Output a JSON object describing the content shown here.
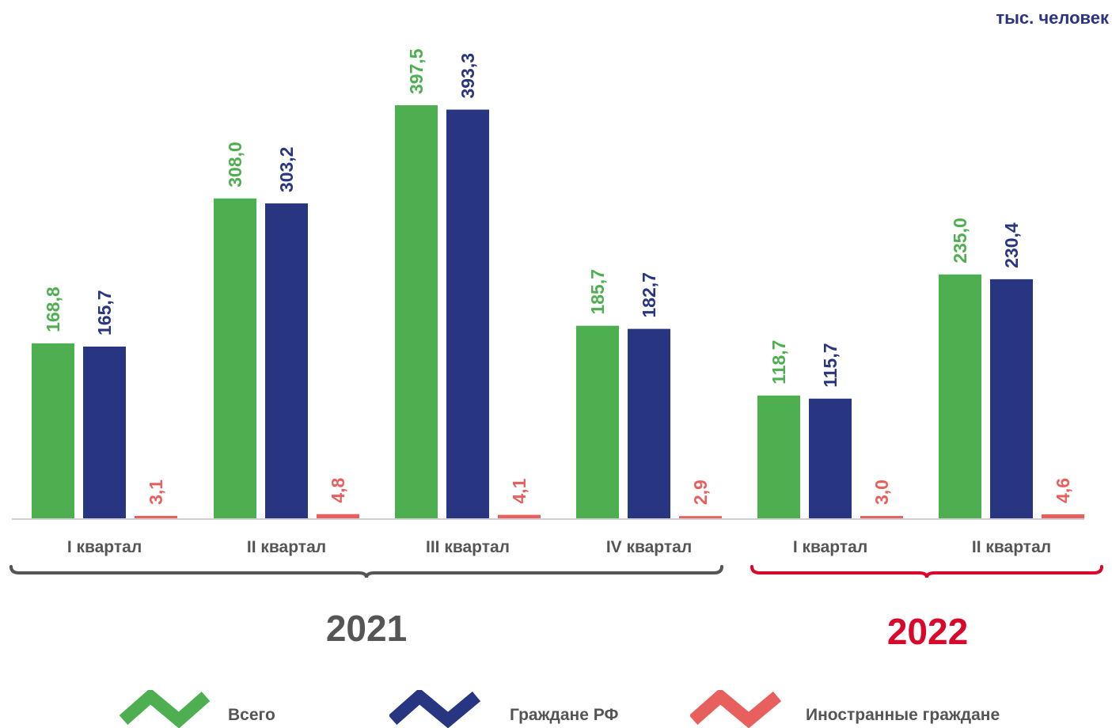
{
  "unit_label": "тыс. человек",
  "colors": {
    "total": "#4daf4f",
    "citizens": "#283580",
    "foreign": "#e8605e",
    "year2021": "#555555",
    "year2022": "#d9082a"
  },
  "legend": [
    {
      "label": "Всего",
      "color": "#4daf4f",
      "icon": "check-mark-icon"
    },
    {
      "label": "Граждане РФ",
      "color": "#283580",
      "icon": "chevron-wave-icon"
    },
    {
      "label": "Иностранные граждане",
      "color": "#e8605e",
      "icon": "chevron-wave-icon"
    }
  ],
  "chart_data": {
    "type": "bar",
    "categories": [
      "I квартал",
      "II квартал",
      "III квартал",
      "IV квартал",
      "I квартал",
      "II квартал"
    ],
    "groups": [
      {
        "label": "2021",
        "categories": [
          0,
          1,
          2,
          3
        ],
        "color": "#555555"
      },
      {
        "label": "2022",
        "categories": [
          4,
          5
        ],
        "color": "#d9082a"
      }
    ],
    "series": [
      {
        "name": "Всего",
        "color": "#4daf4f",
        "values": [
          168.8,
          308.0,
          397.5,
          185.7,
          118.7,
          235.0
        ],
        "labels": [
          "168,8",
          "308,0",
          "397,5",
          "185,7",
          "118,7",
          "235,0"
        ]
      },
      {
        "name": "Граждане РФ",
        "color": "#283580",
        "values": [
          165.7,
          303.2,
          393.3,
          182.7,
          115.7,
          230.4
        ],
        "labels": [
          "165,7",
          "303,2",
          "393,3",
          "182,7",
          "115,7",
          "230,4"
        ]
      },
      {
        "name": "Иностранные граждане",
        "color": "#e8605e",
        "values": [
          3.1,
          4.8,
          4.1,
          2.9,
          3.0,
          4.6
        ],
        "labels": [
          "3,1",
          "4,8",
          "4,1",
          "2,9",
          "3,0",
          "4,6"
        ]
      }
    ],
    "ylim": [
      0,
      397.5
    ],
    "grid": false,
    "legend_position": "bottom",
    "title": "",
    "xlabel": "",
    "ylabel": "тыс. человек"
  }
}
